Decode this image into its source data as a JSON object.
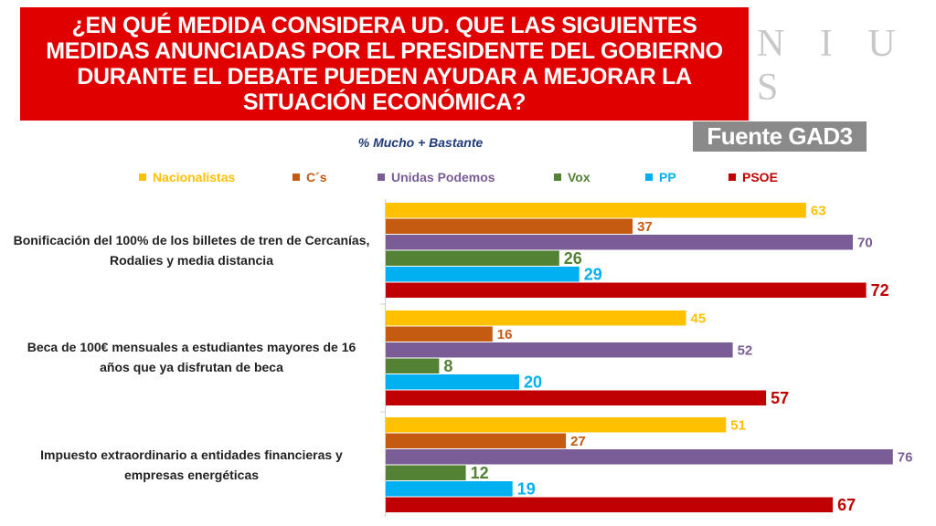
{
  "header": {
    "title": "¿EN QUÉ MEDIDA CONSIDERA UD. QUE LAS SIGUIENTES MEDIDAS ANUNCIADAS POR EL PRESIDENTE DEL GOBIERNO DURANTE EL DEBATE PUEDEN AYUDAR A MEJORAR LA SITUACIÓN ECONÓMICA?",
    "watermark": "N I U S",
    "source": "Fuente GAD3"
  },
  "chart_data": {
    "type": "bar",
    "orientation": "horizontal",
    "title": "¿EN QUÉ MEDIDA CONSIDERA UD. QUE LAS SIGUIENTES MEDIDAS ANUNCIADAS POR EL PRESIDENTE DEL GOBIERNO DURANTE EL DEBATE PUEDEN AYUDAR A MEJORAR LA SITUACIÓN ECONÓMICA?",
    "subtitle": "% Mucho + Bastante",
    "xlim": [
      0,
      100
    ],
    "grid": false,
    "legend_position": "top",
    "categories": [
      "Bonificación del 100% de los billetes de tren de Cercanías, Rodalies y media distancia",
      "Beca de 100€ mensuales a estudiantes mayores de 16 años que ya disfrutan de beca",
      "Impuesto extraordinario a entidades financieras y empresas energéticas"
    ],
    "series": [
      {
        "name": "Nacionalistas",
        "color": "#ffc000",
        "values": [
          63,
          45,
          51
        ]
      },
      {
        "name": "C´s",
        "color": "#c55a11",
        "values": [
          37,
          16,
          27
        ]
      },
      {
        "name": "Unidas Podemos",
        "color": "#7a5c96",
        "values": [
          70,
          52,
          76
        ]
      },
      {
        "name": "Vox",
        "color": "#548235",
        "values": [
          26,
          8,
          12
        ]
      },
      {
        "name": "PP",
        "color": "#00b0f0",
        "values": [
          29,
          20,
          19
        ]
      },
      {
        "name": "PSOE",
        "color": "#c00000",
        "values": [
          72,
          57,
          67
        ]
      }
    ]
  }
}
